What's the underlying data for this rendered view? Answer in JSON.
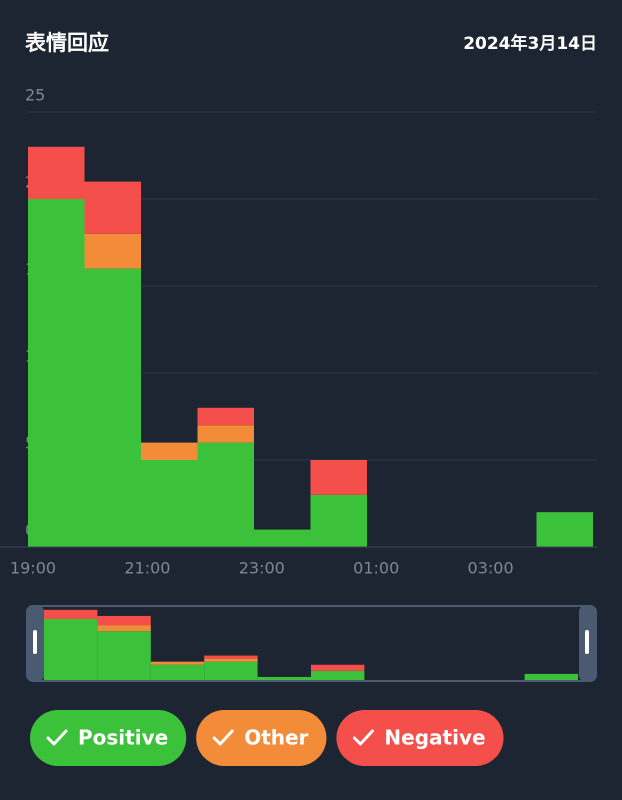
{
  "chart_data": {
    "type": "bar",
    "stacked": true,
    "title": "表情回应",
    "subtitle": "2024年3月14日",
    "categories": [
      "19:00",
      null,
      "21:00",
      null,
      "23:00",
      null,
      "01:00",
      null,
      "03:00",
      null
    ],
    "series": [
      {
        "name": "Positive",
        "color": "#3cc13b",
        "values": [
          20,
          16,
          5,
          6,
          1,
          3,
          0,
          0,
          0,
          2
        ]
      },
      {
        "name": "Other",
        "color": "#f28c38",
        "values": [
          0,
          2,
          1,
          1,
          0,
          0,
          0,
          0,
          0,
          0
        ]
      },
      {
        "name": "Negative",
        "color": "#f44f4a",
        "values": [
          3,
          3,
          0,
          1,
          0,
          2,
          0,
          0,
          0,
          0
        ]
      }
    ],
    "ylim": [
      0,
      25
    ],
    "yticks": [
      0,
      5,
      10,
      15,
      20,
      25
    ],
    "grid": true
  }
}
